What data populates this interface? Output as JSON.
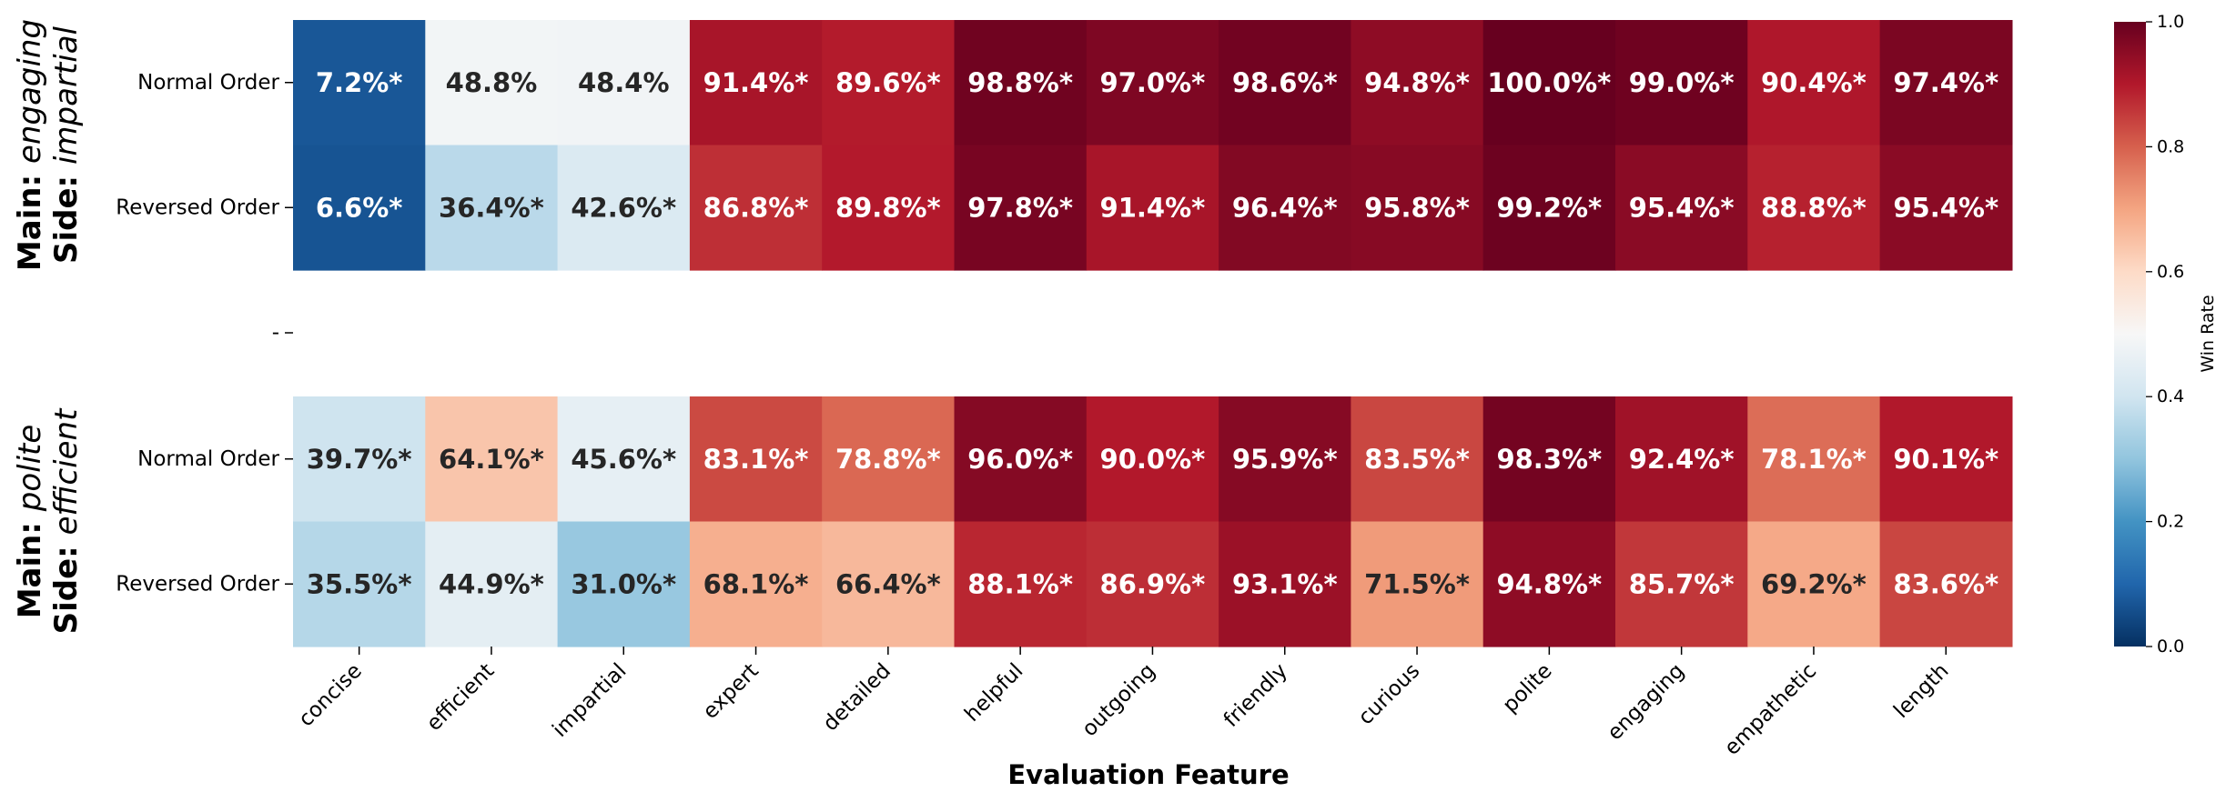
{
  "chart_data": {
    "type": "heatmap",
    "xlabel": "Evaluation Feature",
    "columns": [
      "concise",
      "efficient",
      "impartial",
      "expert",
      "detailed",
      "helpful",
      "outgoing",
      "friendly",
      "curious",
      "polite",
      "engaging",
      "empathetic",
      "length"
    ],
    "separator_tick_label": "-",
    "colorbar": {
      "label": "Win Rate",
      "range": [
        0.0,
        1.0
      ],
      "ticks": [
        "0.0",
        "0.2",
        "0.4",
        "0.6",
        "0.8",
        "1.0"
      ],
      "colormap": "RdBu_r"
    },
    "groups": [
      {
        "main_prefix": "Main: ",
        "main_value": "engaging",
        "side_prefix": "Side: ",
        "side_value": "impartial",
        "rows": [
          {
            "label": "Normal Order",
            "values": [
              0.072,
              0.488,
              0.484,
              0.914,
              0.896,
              0.988,
              0.97,
              0.986,
              0.948,
              1.0,
              0.99,
              0.904,
              0.974
            ],
            "labels": [
              "7.2%*",
              "48.8%",
              "48.4%",
              "91.4%*",
              "89.6%*",
              "98.8%*",
              "97.0%*",
              "98.6%*",
              "94.8%*",
              "100.0%*",
              "99.0%*",
              "90.4%*",
              "97.4%*"
            ]
          },
          {
            "label": "Reversed Order",
            "values": [
              0.066,
              0.364,
              0.426,
              0.868,
              0.898,
              0.978,
              0.914,
              0.964,
              0.958,
              0.992,
              0.954,
              0.888,
              0.954
            ],
            "labels": [
              "6.6%*",
              "36.4%*",
              "42.6%*",
              "86.8%*",
              "89.8%*",
              "97.8%*",
              "91.4%*",
              "96.4%*",
              "95.8%*",
              "99.2%*",
              "95.4%*",
              "88.8%*",
              "95.4%*"
            ]
          }
        ]
      },
      {
        "main_prefix": "Main: ",
        "main_value": "polite",
        "side_prefix": "Side: ",
        "side_value": "efficient",
        "rows": [
          {
            "label": "Normal Order",
            "values": [
              0.397,
              0.641,
              0.456,
              0.831,
              0.788,
              0.96,
              0.9,
              0.959,
              0.835,
              0.983,
              0.924,
              0.781,
              0.901
            ],
            "labels": [
              "39.7%*",
              "64.1%*",
              "45.6%*",
              "83.1%*",
              "78.8%*",
              "96.0%*",
              "90.0%*",
              "95.9%*",
              "83.5%*",
              "98.3%*",
              "92.4%*",
              "78.1%*",
              "90.1%*"
            ]
          },
          {
            "label": "Reversed Order",
            "values": [
              0.355,
              0.449,
              0.31,
              0.681,
              0.664,
              0.881,
              0.869,
              0.931,
              0.715,
              0.948,
              0.857,
              0.692,
              0.836
            ],
            "labels": [
              "35.5%*",
              "44.9%*",
              "31.0%*",
              "68.1%*",
              "66.4%*",
              "88.1%*",
              "86.9%*",
              "93.1%*",
              "71.5%*",
              "94.8%*",
              "85.7%*",
              "69.2%*",
              "83.6%*"
            ]
          }
        ]
      }
    ]
  }
}
